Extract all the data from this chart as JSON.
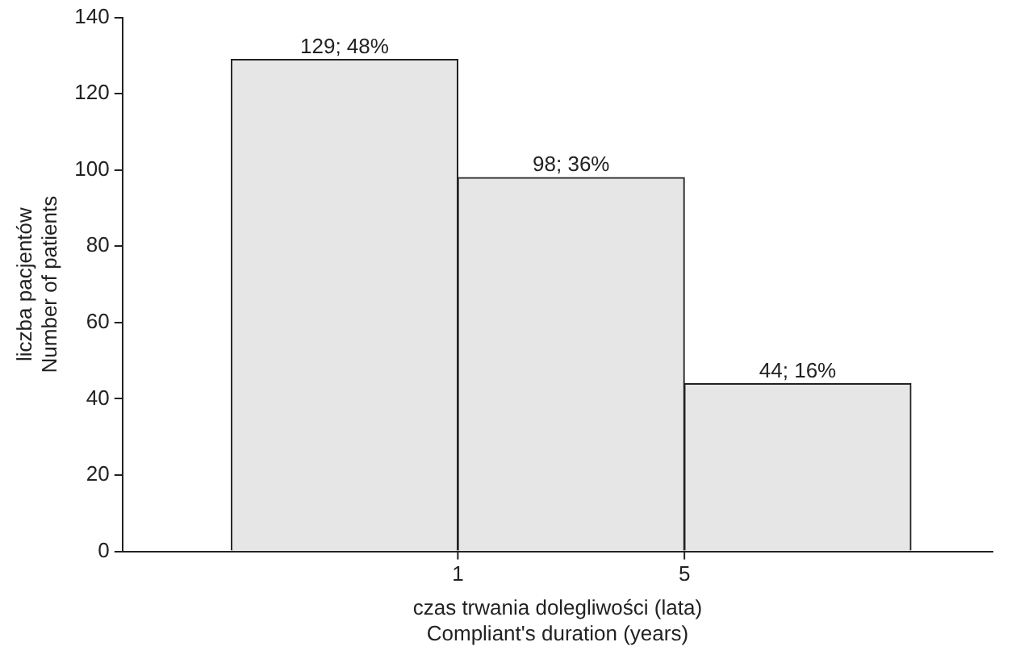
{
  "chart_data": {
    "type": "bar",
    "categories": [
      null,
      null,
      null
    ],
    "values": [
      129,
      98,
      44
    ],
    "value_labels": [
      "129; 48%",
      "98; 36%",
      "44; 16%"
    ],
    "color": "#e6e6e6",
    "xlabel": "czas trwania dolegliwości (lata)\nCompliant's duration (years)",
    "ylabel": "liczba pacjentów\nNumber of patients",
    "annotations": [
      "1",
      "5"
    ],
    "ylim": [
      0,
      140
    ],
    "yticks": [
      0,
      20,
      40,
      60,
      80,
      100,
      120,
      140
    ],
    "grid": false,
    "legend": false
  }
}
